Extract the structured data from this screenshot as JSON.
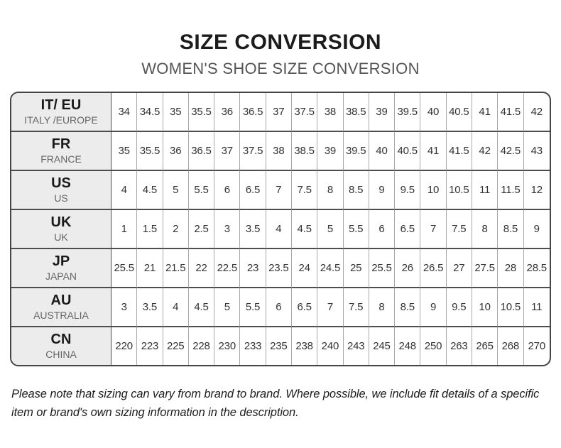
{
  "page": {
    "title": "SIZE CONVERSION",
    "subtitle": "WOMEN'S SHOE SIZE CONVERSION",
    "footnote": "Please note that sizing can vary from brand to brand. Where possible, we include fit details of a specific item or brand's own sizing information in the description."
  },
  "colors": {
    "header_cell_bg": "#ececec",
    "outer_border": "#454545",
    "row_border": "#4d4d4d",
    "column_border": "#a8a8a8",
    "title_text": "#1c1c1c",
    "subtitle_text": "#555555",
    "region_text": "#666666",
    "cell_text": "#333333"
  },
  "table": {
    "rows": [
      {
        "code": "IT/ EU",
        "region": "ITALY /EUROPE",
        "sizes": [
          "34",
          "34.5",
          "35",
          "35.5",
          "36",
          "36.5",
          "37",
          "37.5",
          "38",
          "38.5",
          "39",
          "39.5",
          "40",
          "40.5",
          "41",
          "41.5",
          "42"
        ]
      },
      {
        "code": "FR",
        "region": "FRANCE",
        "sizes": [
          "35",
          "35.5",
          "36",
          "36.5",
          "37",
          "37.5",
          "38",
          "38.5",
          "39",
          "39.5",
          "40",
          "40.5",
          "41",
          "41.5",
          "42",
          "42.5",
          "43"
        ]
      },
      {
        "code": "US",
        "region": "US",
        "sizes": [
          "4",
          "4.5",
          "5",
          "5.5",
          "6",
          "6.5",
          "7",
          "7.5",
          "8",
          "8.5",
          "9",
          "9.5",
          "10",
          "10.5",
          "11",
          "11.5",
          "12"
        ]
      },
      {
        "code": "UK",
        "region": "UK",
        "sizes": [
          "1",
          "1.5",
          "2",
          "2.5",
          "3",
          "3.5",
          "4",
          "4.5",
          "5",
          "5.5",
          "6",
          "6.5",
          "7",
          "7.5",
          "8",
          "8.5",
          "9"
        ]
      },
      {
        "code": "JP",
        "region": "JAPAN",
        "sizes": [
          "25.5",
          "21",
          "21.5",
          "22",
          "22.5",
          "23",
          "23.5",
          "24",
          "24.5",
          "25",
          "25.5",
          "26",
          "26.5",
          "27",
          "27.5",
          "28",
          "28.5"
        ]
      },
      {
        "code": "AU",
        "region": "AUSTRALIA",
        "sizes": [
          "3",
          "3.5",
          "4",
          "4.5",
          "5",
          "5.5",
          "6",
          "6.5",
          "7",
          "7.5",
          "8",
          "8.5",
          "9",
          "9.5",
          "10",
          "10.5",
          "11"
        ]
      },
      {
        "code": "CN",
        "region": "CHINA",
        "sizes": [
          "220",
          "223",
          "225",
          "228",
          "230",
          "233",
          "235",
          "238",
          "240",
          "243",
          "245",
          "248",
          "250",
          "263",
          "265",
          "268",
          "270"
        ]
      }
    ]
  }
}
